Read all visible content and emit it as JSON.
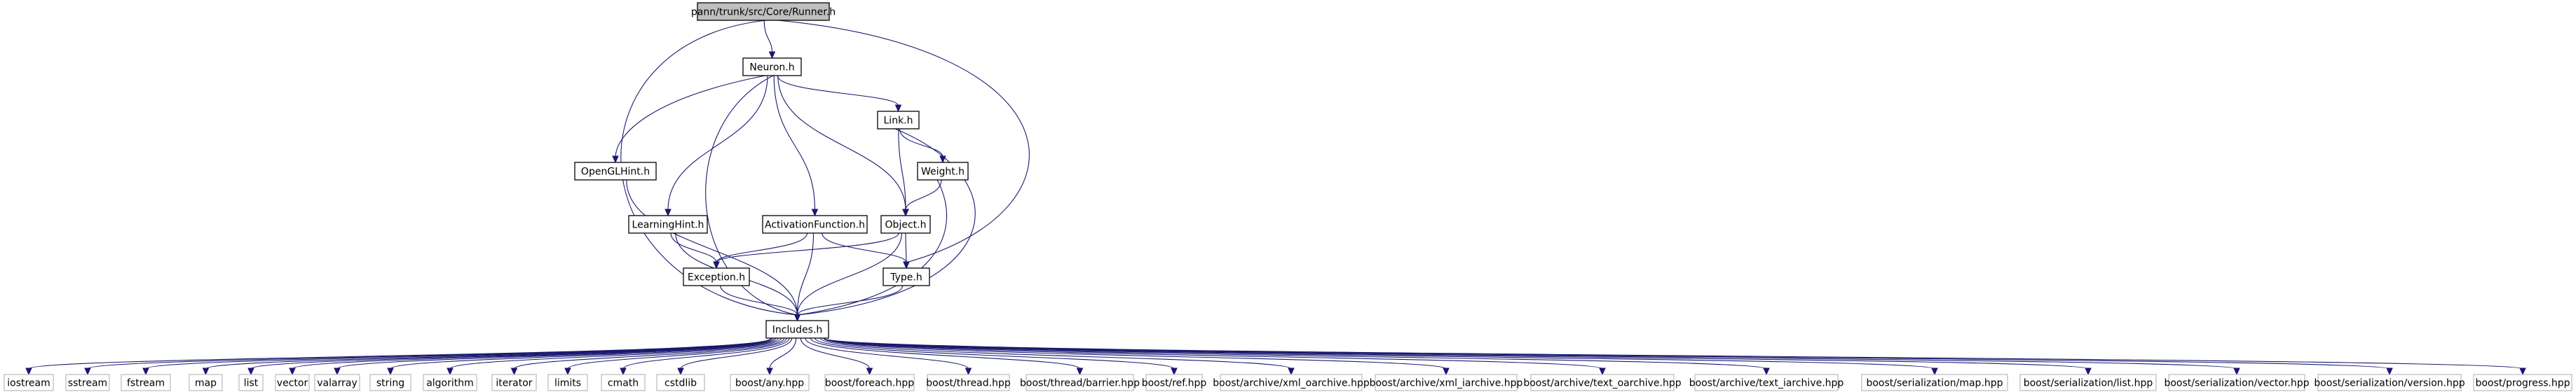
{
  "diagram": {
    "nodes": [
      {
        "id": "root",
        "label": "pann/trunk/src/Core/Runner.h",
        "kind": "root"
      },
      {
        "id": "neuron",
        "label": "Neuron.h",
        "kind": "inner"
      },
      {
        "id": "link",
        "label": "Link.h",
        "kind": "inner"
      },
      {
        "id": "opengl",
        "label": "OpenGLHint.h",
        "kind": "inner"
      },
      {
        "id": "weight",
        "label": "Weight.h",
        "kind": "inner"
      },
      {
        "id": "learning",
        "label": "LearningHint.h",
        "kind": "inner"
      },
      {
        "id": "activation",
        "label": "ActivationFunction.h",
        "kind": "inner"
      },
      {
        "id": "object",
        "label": "Object.h",
        "kind": "inner"
      },
      {
        "id": "exception",
        "label": "Exception.h",
        "kind": "inner"
      },
      {
        "id": "type",
        "label": "Type.h",
        "kind": "inner"
      },
      {
        "id": "includes",
        "label": "Includes.h",
        "kind": "inner"
      },
      {
        "id": "l_iostream",
        "label": "iostream",
        "kind": "leaf"
      },
      {
        "id": "l_sstream",
        "label": "sstream",
        "kind": "leaf"
      },
      {
        "id": "l_fstream",
        "label": "fstream",
        "kind": "leaf"
      },
      {
        "id": "l_map",
        "label": "map",
        "kind": "leaf"
      },
      {
        "id": "l_list",
        "label": "list",
        "kind": "leaf"
      },
      {
        "id": "l_vector",
        "label": "vector",
        "kind": "leaf"
      },
      {
        "id": "l_valarray",
        "label": "valarray",
        "kind": "leaf"
      },
      {
        "id": "l_string",
        "label": "string",
        "kind": "leaf"
      },
      {
        "id": "l_algorithm",
        "label": "algorithm",
        "kind": "leaf"
      },
      {
        "id": "l_iterator",
        "label": "iterator",
        "kind": "leaf"
      },
      {
        "id": "l_limits",
        "label": "limits",
        "kind": "leaf"
      },
      {
        "id": "l_cmath",
        "label": "cmath",
        "kind": "leaf"
      },
      {
        "id": "l_cstdlib",
        "label": "cstdlib",
        "kind": "leaf"
      },
      {
        "id": "l_any",
        "label": "boost/any.hpp",
        "kind": "leaf"
      },
      {
        "id": "l_foreach",
        "label": "boost/foreach.hpp",
        "kind": "leaf"
      },
      {
        "id": "l_thread",
        "label": "boost/thread.hpp",
        "kind": "leaf"
      },
      {
        "id": "l_barrier",
        "label": "boost/thread/barrier.hpp",
        "kind": "leaf"
      },
      {
        "id": "l_ref",
        "label": "boost/ref.hpp",
        "kind": "leaf"
      },
      {
        "id": "l_xml_oarchive",
        "label": "boost/archive/xml_oarchive.hpp",
        "kind": "leaf"
      },
      {
        "id": "l_xml_iarchive",
        "label": "boost/archive/xml_iarchive.hpp",
        "kind": "leaf"
      },
      {
        "id": "l_text_oarchive",
        "label": "boost/archive/text_oarchive.hpp",
        "kind": "leaf"
      },
      {
        "id": "l_text_iarchive",
        "label": "boost/archive/text_iarchive.hpp",
        "kind": "leaf"
      },
      {
        "id": "l_ser_map",
        "label": "boost/serialization/map.hpp",
        "kind": "leaf"
      },
      {
        "id": "l_ser_list",
        "label": "boost/serialization/list.hpp",
        "kind": "leaf"
      },
      {
        "id": "l_ser_vector",
        "label": "boost/serialization/vector.hpp",
        "kind": "leaf"
      },
      {
        "id": "l_ser_version",
        "label": "boost/serialization/version.hpp",
        "kind": "leaf"
      },
      {
        "id": "l_progress",
        "label": "boost/progress.hpp",
        "kind": "leaf"
      }
    ],
    "edges": [
      [
        "root",
        "neuron"
      ],
      [
        "root",
        "includes"
      ],
      [
        "root",
        "type"
      ],
      [
        "neuron",
        "link"
      ],
      [
        "neuron",
        "opengl"
      ],
      [
        "neuron",
        "learning"
      ],
      [
        "neuron",
        "activation"
      ],
      [
        "neuron",
        "object"
      ],
      [
        "neuron",
        "includes"
      ],
      [
        "link",
        "weight"
      ],
      [
        "link",
        "object"
      ],
      [
        "link",
        "includes"
      ],
      [
        "opengl",
        "includes"
      ],
      [
        "weight",
        "object"
      ],
      [
        "weight",
        "includes"
      ],
      [
        "learning",
        "exception"
      ],
      [
        "learning",
        "includes"
      ],
      [
        "activation",
        "exception"
      ],
      [
        "activation",
        "type"
      ],
      [
        "activation",
        "includes"
      ],
      [
        "object",
        "exception"
      ],
      [
        "object",
        "type"
      ],
      [
        "object",
        "includes"
      ],
      [
        "exception",
        "includes"
      ],
      [
        "type",
        "includes"
      ],
      [
        "includes",
        "l_iostream"
      ],
      [
        "includes",
        "l_sstream"
      ],
      [
        "includes",
        "l_fstream"
      ],
      [
        "includes",
        "l_map"
      ],
      [
        "includes",
        "l_list"
      ],
      [
        "includes",
        "l_vector"
      ],
      [
        "includes",
        "l_valarray"
      ],
      [
        "includes",
        "l_string"
      ],
      [
        "includes",
        "l_algorithm"
      ],
      [
        "includes",
        "l_iterator"
      ],
      [
        "includes",
        "l_limits"
      ],
      [
        "includes",
        "l_cmath"
      ],
      [
        "includes",
        "l_cstdlib"
      ],
      [
        "includes",
        "l_any"
      ],
      [
        "includes",
        "l_foreach"
      ],
      [
        "includes",
        "l_thread"
      ],
      [
        "includes",
        "l_barrier"
      ],
      [
        "includes",
        "l_ref"
      ],
      [
        "includes",
        "l_xml_oarchive"
      ],
      [
        "includes",
        "l_xml_iarchive"
      ],
      [
        "includes",
        "l_text_oarchive"
      ],
      [
        "includes",
        "l_text_iarchive"
      ],
      [
        "includes",
        "l_ser_map"
      ],
      [
        "includes",
        "l_ser_list"
      ],
      [
        "includes",
        "l_ser_vector"
      ],
      [
        "includes",
        "l_ser_version"
      ],
      [
        "includes",
        "l_progress"
      ]
    ]
  }
}
